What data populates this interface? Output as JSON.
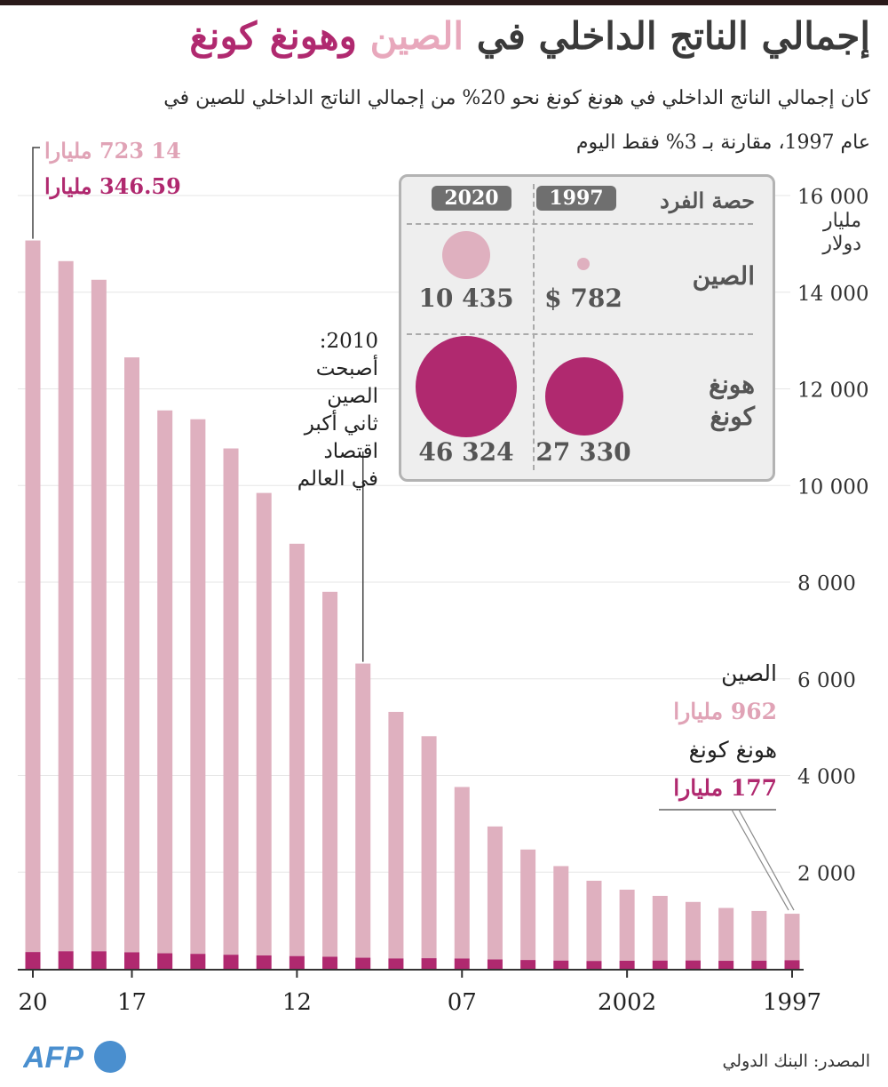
{
  "title_parts": [
    "إجمالي الناتج الداخلي في ",
    "الصين",
    " و",
    "هونغ كونغ"
  ],
  "subtitle": "كان إجمالي الناتج الداخلي في هونغ كونغ نحو 20% من إجمالي الناتج الداخلي للصين في عام 1997، مقارنة بـ 3% فقط اليوم",
  "unit": "مليار دولار",
  "source": "المصدر: البنك الدولي",
  "logo_text": "AFP",
  "colors": {
    "china": "#dfb0bf",
    "hongkong": "#b0296f",
    "label_pink": "#e0a3b6"
  },
  "annotations": {
    "top_china": "14 723 مليارا",
    "top_hk": "346.59 مليارا",
    "note_2010": [
      "2010:",
      "أصبحت الصين",
      "ثاني أكبر اقتصاد",
      "في العالم"
    ],
    "bottom_china_label": "الصين",
    "bottom_china_value": "962 مليارا",
    "bottom_hk_label": "هونغ كونغ",
    "bottom_hk_value": "177 مليارا"
  },
  "panel": {
    "header": "حصة الفرد",
    "years": [
      "2020",
      "1997"
    ],
    "rows": [
      {
        "label": "الصين",
        "v2020": 10435,
        "v1997": 782,
        "v2020_text": "10 435",
        "v1997_text": "$ 782"
      },
      {
        "label": "هونغ كونغ",
        "v2020": 46324,
        "v1997": 27330,
        "v2020_text": "46 324",
        "v1997_text": "27 330"
      }
    ]
  },
  "chart_data": {
    "type": "bar",
    "stacked": true,
    "title": "إجمالي الناتج الداخلي في الصين وهونغ كونغ",
    "ylabel": "مليار دولار",
    "ylim": [
      0,
      16000
    ],
    "yticks": [
      2000,
      4000,
      6000,
      8000,
      10000,
      12000,
      14000,
      16000
    ],
    "ytick_labels": [
      "2 000",
      "4 000",
      "6 000",
      "8 000",
      "10 000",
      "12 000",
      "14 000",
      "16 000"
    ],
    "grid": true,
    "categories": [
      1997,
      1998,
      1999,
      2000,
      2001,
      2002,
      2003,
      2004,
      2005,
      2006,
      2007,
      2008,
      2009,
      2010,
      2011,
      2012,
      2013,
      2014,
      2015,
      2016,
      2017,
      2018,
      2019,
      2020
    ],
    "xtick_labels": [
      {
        "year": 1997,
        "text": "1997"
      },
      {
        "year": 2002,
        "text": "2002"
      },
      {
        "year": 2007,
        "text": "07"
      },
      {
        "year": 2012,
        "text": "12"
      },
      {
        "year": 2017,
        "text": "17"
      },
      {
        "year": 2020,
        "text": "20"
      }
    ],
    "series": [
      {
        "name": "هونغ كونغ",
        "values": [
          177,
          168,
          165,
          172,
          170,
          166,
          162,
          170,
          182,
          193,
          212,
          219,
          214,
          229,
          249,
          263,
          276,
          291,
          309,
          321,
          341,
          362,
          363,
          347
        ]
      },
      {
        "name": "الصين",
        "values": [
          962,
          1029,
          1094,
          1211,
          1339,
          1471,
          1660,
          1955,
          2286,
          2752,
          3550,
          4594,
          5102,
          6087,
          7552,
          8532,
          9570,
          10476,
          11062,
          11233,
          12310,
          13895,
          14280,
          14723
        ]
      }
    ]
  }
}
